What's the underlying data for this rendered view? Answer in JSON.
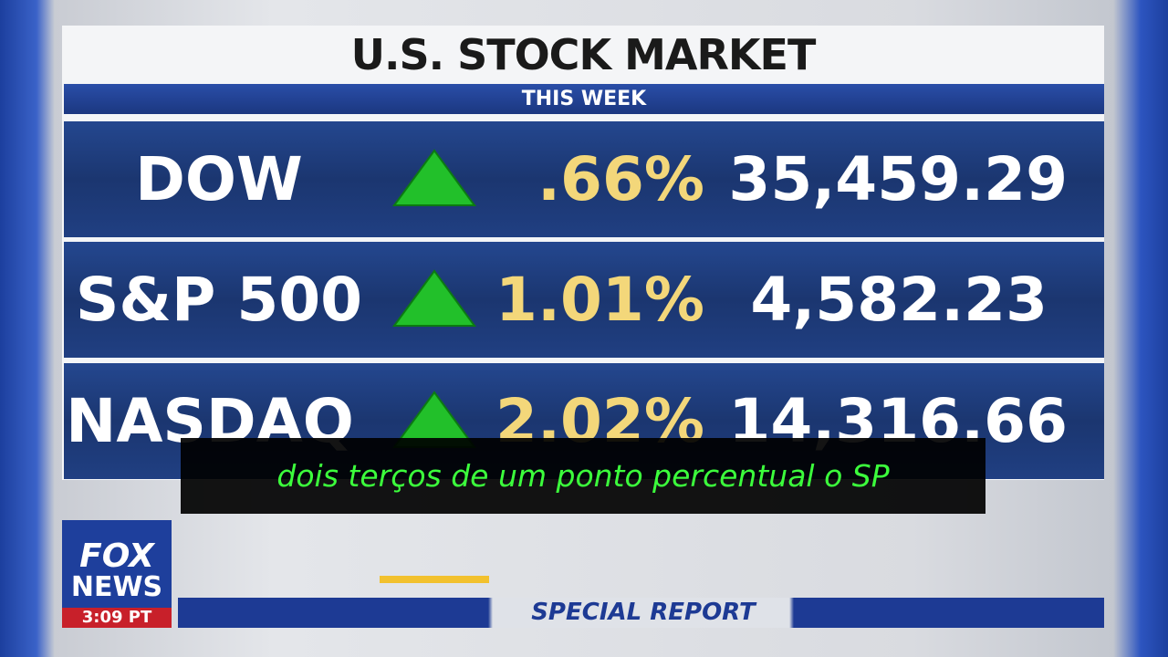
{
  "header": {
    "title": "U.S. STOCK MARKET",
    "subtitle": "THIS WEEK"
  },
  "table": {
    "rows": [
      [
        "DOW",
        ".66%",
        "35,459.29"
      ],
      [
        "S&P 500",
        "1.01%",
        "4,582.23"
      ],
      [
        "NASDAQ",
        "2.02%",
        "14,316.66"
      ]
    ]
  },
  "caption": "dois terços de um ponto percentual o SP",
  "logo": {
    "line1": "FOX",
    "line2": "NEWS",
    "time": "3:09 PT"
  },
  "banner": "SPECIAL REPORT"
}
